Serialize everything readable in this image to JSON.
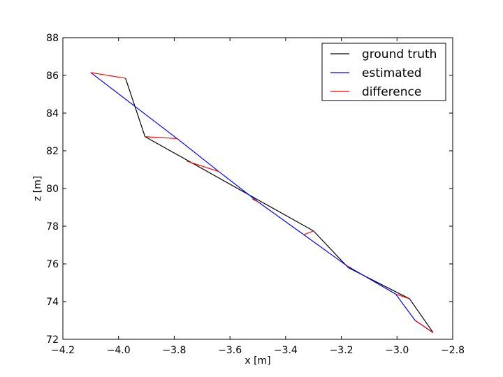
{
  "chart_data": {
    "type": "line",
    "xlabel": "x [m]",
    "ylabel": "z [m]",
    "xlim": [
      -4.2,
      -2.8
    ],
    "ylim": [
      72,
      88
    ],
    "xticks": [
      -4.2,
      -4.0,
      -3.8,
      -3.6,
      -3.4,
      -3.2,
      -3.0,
      -2.8
    ],
    "yticks": [
      72,
      74,
      76,
      78,
      80,
      82,
      84,
      86,
      88
    ],
    "xtick_labels": [
      "−4.2",
      "−4.0",
      "−3.8",
      "−3.6",
      "−3.4",
      "−3.2",
      "−3.0",
      "−2.8"
    ],
    "ytick_labels": [
      "72",
      "74",
      "76",
      "78",
      "80",
      "82",
      "84",
      "86",
      "88"
    ],
    "grid": false,
    "legend_position": "top-right",
    "series": [
      {
        "name": "ground truth",
        "color": "#000000",
        "points": [
          [
            -3.975,
            85.85
          ],
          [
            -3.905,
            82.75
          ],
          [
            -3.3,
            77.75
          ],
          [
            -3.175,
            75.8
          ],
          [
            -2.955,
            74.15
          ],
          [
            -2.87,
            72.35
          ]
        ]
      },
      {
        "name": "estimated",
        "color": "#0000ff",
        "points": [
          [
            -4.1,
            86.15
          ],
          [
            -3.79,
            82.65
          ],
          [
            -3.64,
            80.9
          ],
          [
            -3.5,
            79.3
          ],
          [
            -3.335,
            77.55
          ],
          [
            -3.18,
            75.9
          ],
          [
            -3.005,
            74.4
          ],
          [
            -2.935,
            73.0
          ],
          [
            -2.87,
            72.35
          ]
        ]
      },
      {
        "name": "difference",
        "color": "#ff0000",
        "segments": [
          [
            [
              -4.1,
              86.15
            ],
            [
              -3.975,
              85.85
            ]
          ],
          [
            [
              -3.905,
              82.75
            ],
            [
              -3.79,
              82.65
            ]
          ],
          [
            [
              -3.755,
              81.45
            ],
            [
              -3.64,
              80.9
            ]
          ],
          [
            [
              -3.52,
              79.45
            ],
            [
              -3.5,
              79.3
            ]
          ],
          [
            [
              -3.335,
              77.55
            ],
            [
              -3.3,
              77.75
            ]
          ],
          [
            [
              -3.175,
              75.8
            ],
            [
              -3.18,
              75.9
            ]
          ],
          [
            [
              -3.005,
              74.4
            ],
            [
              -2.955,
              74.15
            ]
          ],
          [
            [
              -2.935,
              73.0
            ],
            [
              -2.87,
              72.35
            ]
          ]
        ]
      }
    ]
  }
}
